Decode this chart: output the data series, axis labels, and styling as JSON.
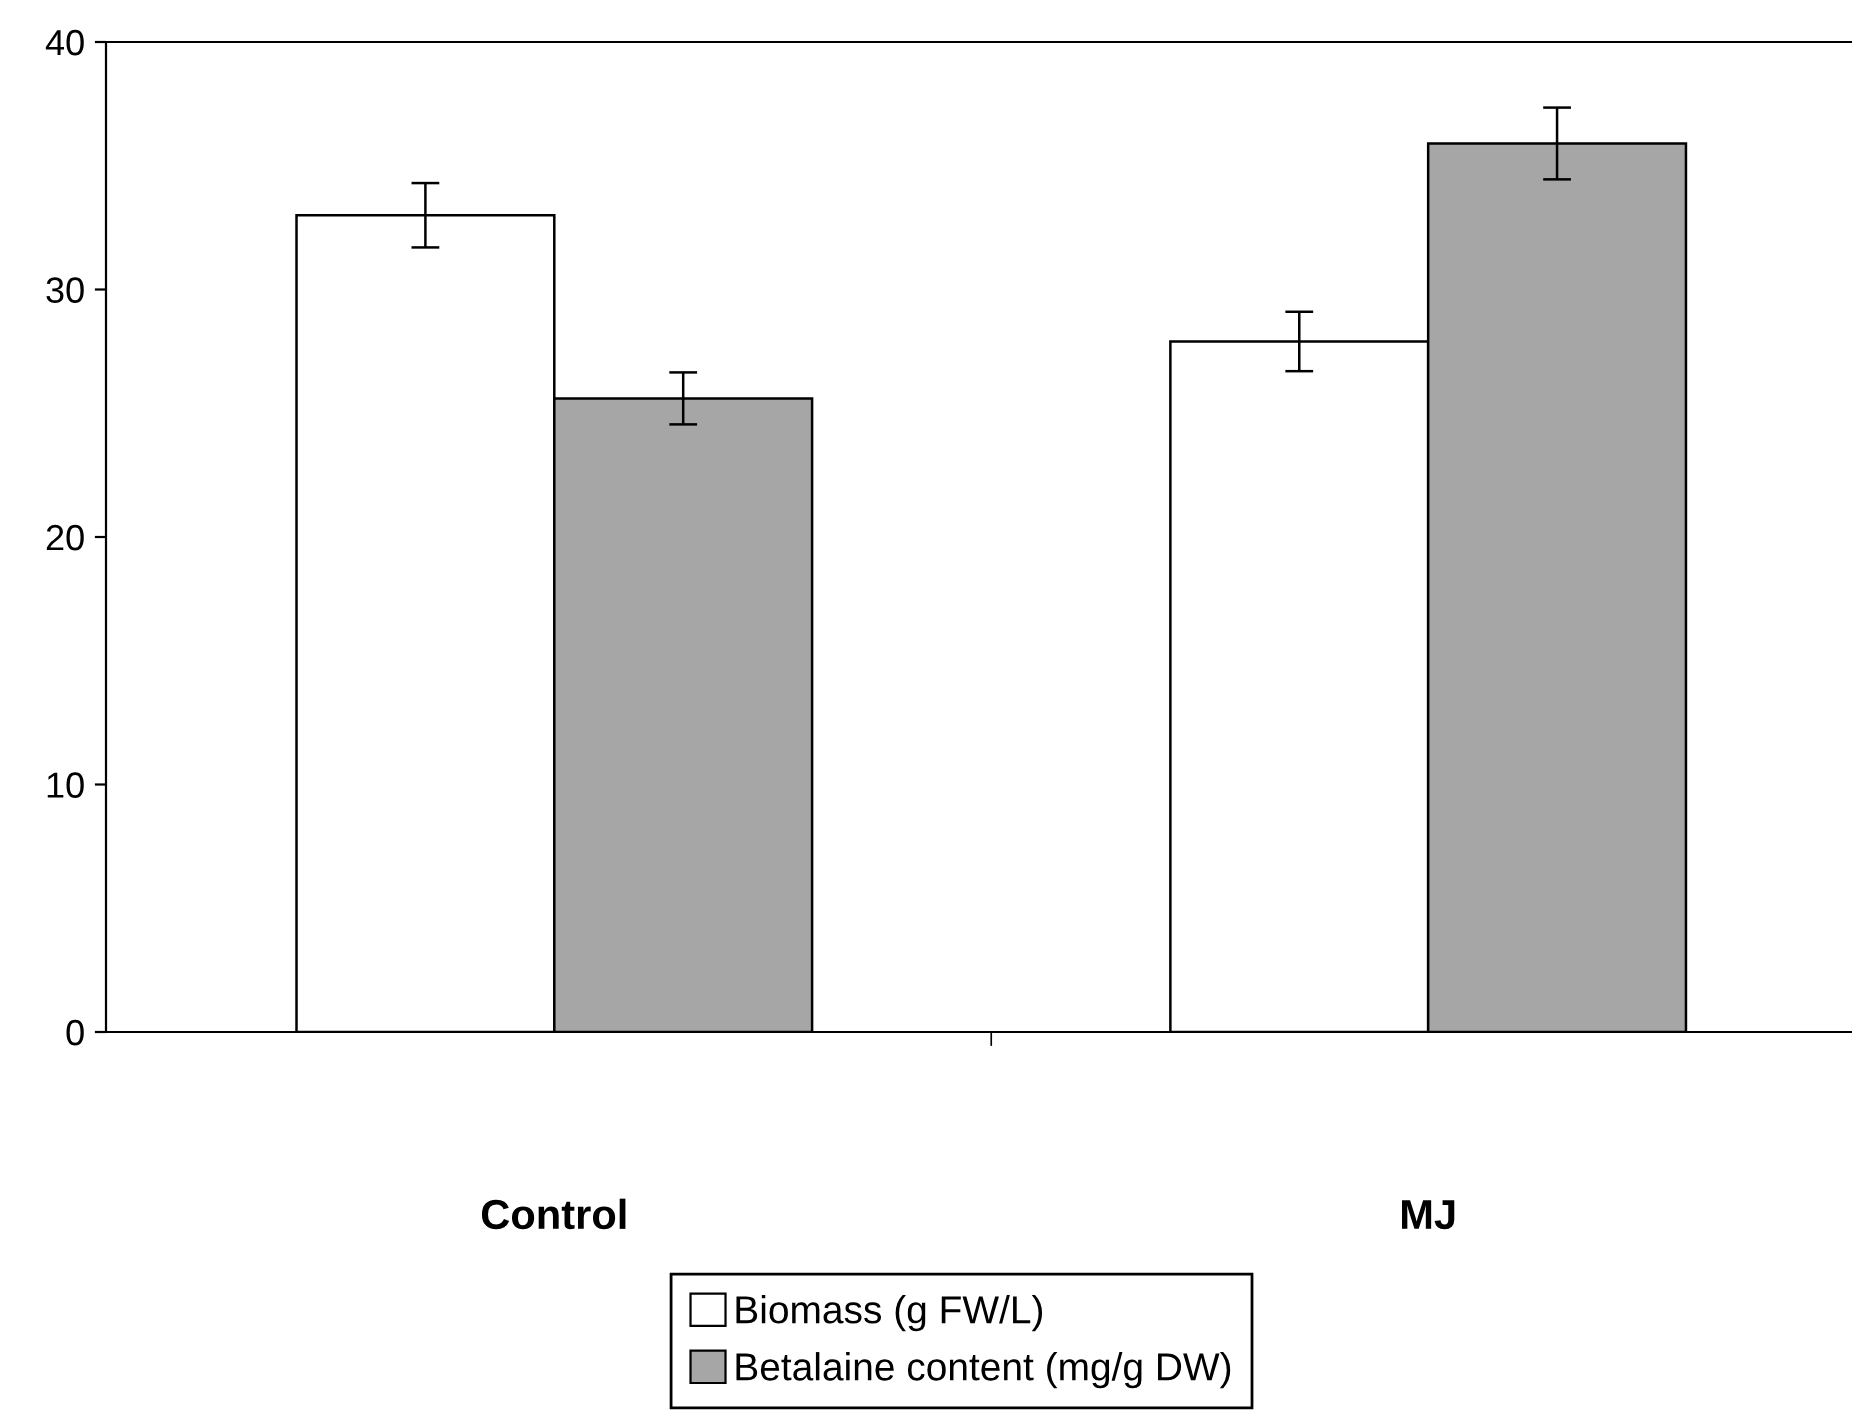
{
  "chart_data": {
    "type": "bar",
    "categories": [
      "Control",
      "MJ"
    ],
    "series": [
      {
        "name": "Biomass (g FW/L)",
        "color": "#ffffff",
        "values": [
          33.0,
          27.9
        ],
        "errors": [
          1.3,
          1.2
        ]
      },
      {
        "name": "Betalaine content (mg/g DW)",
        "color": "#a6a6a6",
        "values": [
          25.6,
          35.9
        ],
        "errors": [
          1.05,
          1.45
        ]
      }
    ],
    "ylim": [
      0,
      40
    ],
    "yticks": [
      0,
      10,
      20,
      30,
      40
    ],
    "grid": false,
    "legend": "bottom"
  }
}
